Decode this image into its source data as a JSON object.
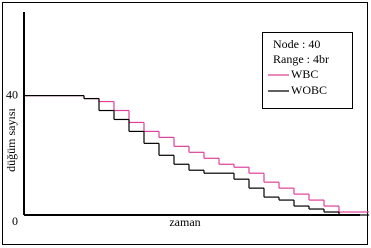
{
  "chart_data": {
    "type": "step",
    "x_label": "zaman",
    "y_label": "düğüm sayısı",
    "annotations": [
      "Node : 40",
      "Range : 4br"
    ],
    "x": [
      0,
      5,
      10,
      15,
      20,
      25,
      30,
      35,
      40,
      45,
      50,
      55,
      60,
      65,
      70,
      75,
      80,
      85,
      90,
      95,
      100,
      105,
      110
    ],
    "series": [
      {
        "name": "WBC",
        "color": "#e0409a",
        "values": [
          40,
          40,
          40,
          40,
          39,
          38,
          35,
          31,
          28,
          26,
          23,
          21,
          19,
          17,
          16,
          14,
          11,
          9,
          7,
          5,
          3,
          1,
          1
        ]
      },
      {
        "name": "WOBC",
        "color": "#000000",
        "values": [
          40,
          40,
          40,
          40,
          39,
          35,
          32,
          28,
          24,
          20,
          17,
          15,
          14,
          14,
          12,
          9,
          6,
          5,
          3,
          2,
          1,
          0,
          0
        ]
      }
    ],
    "xlim": [
      0,
      112
    ],
    "ylim": [
      0,
      68
    ],
    "yticks": [
      0,
      40
    ]
  }
}
